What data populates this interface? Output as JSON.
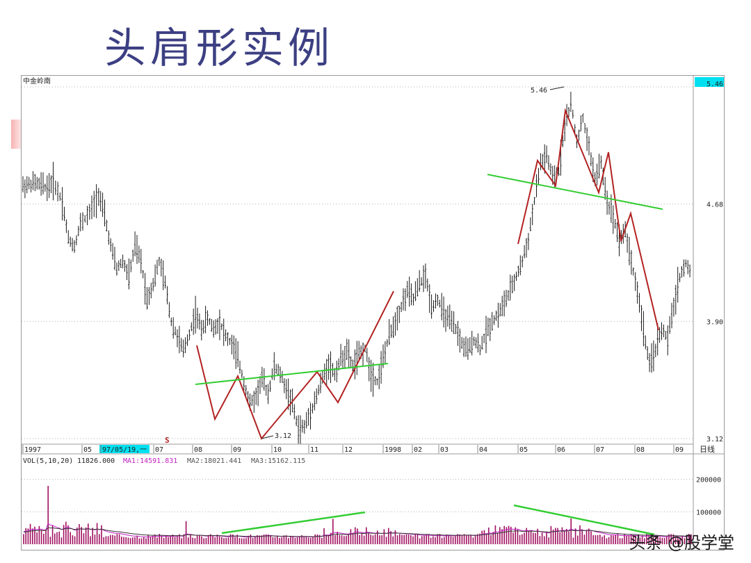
{
  "slide": {
    "title": "头肩形实例",
    "watermark": "头条 @股学堂"
  },
  "chart_data": {
    "type": "candlestick",
    "stock_name": "中金岭南",
    "price_axis": {
      "ticks": [
        "5.46",
        "4.68",
        "3.90",
        "3.12"
      ],
      "ylim": [
        3.12,
        5.46
      ],
      "scale": "log-like"
    },
    "time_axis": {
      "labels": [
        "1997",
        "05",
        "97/05/19,一",
        "07",
        "08",
        "09",
        "10",
        "11",
        "12",
        "1998",
        "02",
        "03",
        "04",
        "05",
        "06",
        "07",
        "08",
        "09"
      ],
      "period_label": "日线"
    },
    "annotations": {
      "high_label": "5.46",
      "low_label": "3.12",
      "marker_s": "S"
    },
    "volume": {
      "header": {
        "name": "VOL(5,10,20)",
        "value": "11826.000",
        "ma1": "MA1:14591.831",
        "ma2": "MA2:18021.441",
        "ma3": "MA3:15162.115"
      },
      "ticks": [
        "200000",
        "100000"
      ],
      "ylim": [
        0,
        240000
      ]
    },
    "patterns": [
      {
        "name": "head-and-shoulders-bottom",
        "neckline_color": "#32cd32",
        "outline_color": "#b22222"
      },
      {
        "name": "head-and-shoulders-top",
        "neckline_color": "#32cd32",
        "outline_color": "#b22222"
      }
    ],
    "price_series_approx": [
      [
        0,
        4.8
      ],
      [
        4,
        4.82
      ],
      [
        8,
        4.79
      ],
      [
        10,
        4.83
      ],
      [
        13,
        4.7
      ],
      [
        15,
        4.45
      ],
      [
        17,
        4.4
      ],
      [
        19,
        4.55
      ],
      [
        22,
        4.62
      ],
      [
        25,
        4.75
      ],
      [
        27,
        4.6
      ],
      [
        29,
        4.4
      ],
      [
        31,
        4.25
      ],
      [
        33,
        4.3
      ],
      [
        35,
        4.2
      ],
      [
        37,
        4.4
      ],
      [
        39,
        4.3
      ],
      [
        41,
        4.05
      ],
      [
        43,
        4.15
      ],
      [
        45,
        4.3
      ],
      [
        47,
        4.15
      ],
      [
        49,
        3.9
      ],
      [
        51,
        3.8
      ],
      [
        53,
        3.7
      ],
      [
        55,
        3.82
      ],
      [
        57,
        3.95
      ],
      [
        59,
        3.85
      ],
      [
        61,
        3.92
      ],
      [
        63,
        3.85
      ],
      [
        65,
        3.9
      ],
      [
        67,
        3.8
      ],
      [
        69,
        3.75
      ],
      [
        71,
        3.65
      ],
      [
        73,
        3.5
      ],
      [
        75,
        3.35
      ],
      [
        77,
        3.4
      ],
      [
        79,
        3.52
      ],
      [
        81,
        3.42
      ],
      [
        83,
        3.6
      ],
      [
        85,
        3.55
      ],
      [
        87,
        3.45
      ],
      [
        89,
        3.35
      ],
      [
        91,
        3.18
      ],
      [
        93,
        3.2
      ],
      [
        95,
        3.3
      ],
      [
        97,
        3.4
      ],
      [
        99,
        3.52
      ],
      [
        101,
        3.62
      ],
      [
        103,
        3.55
      ],
      [
        105,
        3.65
      ],
      [
        107,
        3.7
      ],
      [
        109,
        3.6
      ],
      [
        111,
        3.68
      ],
      [
        113,
        3.72
      ],
      [
        115,
        3.55
      ],
      [
        117,
        3.5
      ],
      [
        119,
        3.65
      ],
      [
        121,
        3.8
      ],
      [
        123,
        3.9
      ],
      [
        125,
        4.0
      ],
      [
        127,
        4.1
      ],
      [
        129,
        4.05
      ],
      [
        131,
        4.15
      ],
      [
        133,
        4.2
      ],
      [
        135,
        4.0
      ],
      [
        137,
        4.05
      ],
      [
        139,
        3.95
      ],
      [
        141,
        3.9
      ],
      [
        143,
        3.85
      ],
      [
        145,
        3.75
      ],
      [
        147,
        3.7
      ],
      [
        149,
        3.78
      ],
      [
        151,
        3.72
      ],
      [
        153,
        3.82
      ],
      [
        155,
        3.9
      ],
      [
        157,
        3.95
      ],
      [
        159,
        4.02
      ],
      [
        161,
        4.1
      ],
      [
        163,
        4.2
      ],
      [
        165,
        4.3
      ],
      [
        167,
        4.45
      ],
      [
        169,
        4.7
      ],
      [
        171,
        4.95
      ],
      [
        173,
        5.0
      ],
      [
        175,
        4.85
      ],
      [
        177,
        4.9
      ],
      [
        179,
        5.2
      ],
      [
        181,
        5.35
      ],
      [
        183,
        5.1
      ],
      [
        185,
        5.25
      ],
      [
        187,
        5.05
      ],
      [
        189,
        4.85
      ],
      [
        191,
        4.95
      ],
      [
        193,
        4.7
      ],
      [
        195,
        4.6
      ],
      [
        197,
        4.45
      ],
      [
        199,
        4.5
      ],
      [
        201,
        4.3
      ],
      [
        203,
        4.1
      ],
      [
        205,
        3.85
      ],
      [
        207,
        3.6
      ],
      [
        209,
        3.72
      ],
      [
        211,
        3.85
      ],
      [
        213,
        3.78
      ],
      [
        215,
        4.0
      ],
      [
        217,
        4.2
      ],
      [
        219,
        4.28
      ],
      [
        221,
        4.22
      ]
    ]
  }
}
